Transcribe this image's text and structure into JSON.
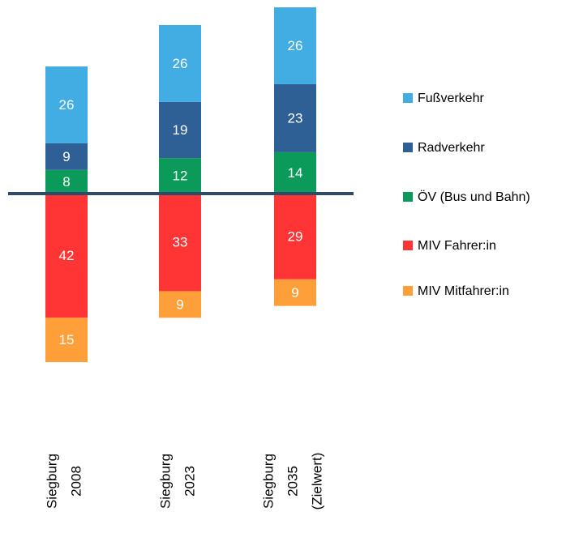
{
  "chart_data": {
    "type": "diverging-stacked-bar",
    "categories": [
      [
        "Siegburg",
        "2008"
      ],
      [
        "Siegburg",
        "2023"
      ],
      [
        "Siegburg",
        "2035",
        "(Zielwert)"
      ]
    ],
    "series": [
      {
        "name": "Fußverkehr",
        "color": "#41ade3",
        "values": [
          26,
          26,
          26
        ]
      },
      {
        "name": "Radverkehr",
        "color": "#2e5f95",
        "values": [
          9,
          19,
          23
        ]
      },
      {
        "name": "ÖV (Bus und Bahn)",
        "color": "#0b9a5a",
        "values": [
          8,
          12,
          14
        ]
      },
      {
        "name": "MIV Fahrer:in",
        "color": "#ff3535",
        "values": [
          -42,
          -33,
          -29
        ],
        "value_labels": [
          "42",
          "33",
          "29"
        ]
      },
      {
        "name": "MIV Mitfahrer:in",
        "color": "#ff9f3a",
        "values": [
          -15,
          -9,
          -9
        ],
        "value_labels": [
          "15",
          "9",
          "9"
        ]
      }
    ],
    "legend": "right"
  }
}
